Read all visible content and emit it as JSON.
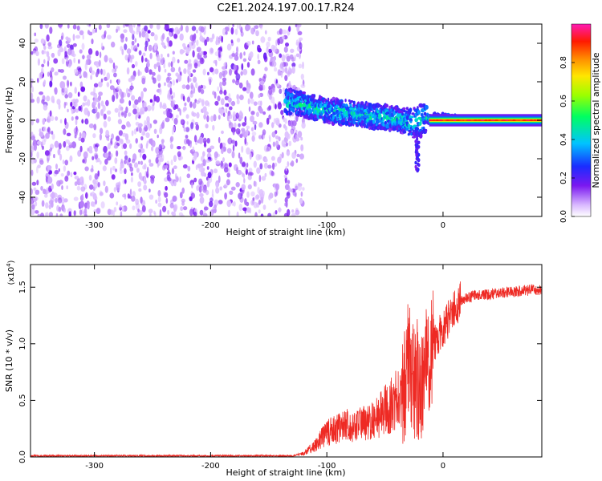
{
  "title": "C2E1.2024.197.00.17.R24",
  "colors": {
    "snr_line": "#ee2a24",
    "background": "#ffffff",
    "noise": "#7a2cf0"
  },
  "chart_data": [
    {
      "type": "heatmap",
      "xlabel": "Height of straight line (km)",
      "ylabel": "Frequency (Hz)",
      "xlim": [
        -355,
        85
      ],
      "ylim": [
        -50,
        50
      ],
      "x_ticks": [
        -300,
        -200,
        -100,
        0
      ],
      "y_ticks": [
        -40,
        -20,
        0,
        20,
        40
      ],
      "x_tick_labels": [
        "-300",
        "-200",
        "-100",
        "0"
      ],
      "y_tick_labels": [
        "-40",
        "-20",
        "0",
        "20",
        "40"
      ],
      "grid": false,
      "colorbar": {
        "label": "Normalized spectral amplitude",
        "range": [
          0,
          1
        ],
        "ticks": [
          0.0,
          0.2,
          0.4,
          0.6,
          0.8
        ],
        "tick_labels": [
          "0.0",
          "0.2",
          "0.4",
          "0.6",
          "0.8"
        ]
      },
      "features": {
        "noise_region_x": [
          -355,
          -125
        ],
        "signal_track": [
          {
            "x": -135,
            "y": 10
          },
          {
            "x": -120,
            "y": 8
          },
          {
            "x": -100,
            "y": 5
          },
          {
            "x": -80,
            "y": 4
          },
          {
            "x": -60,
            "y": 2
          },
          {
            "x": -40,
            "y": 1
          },
          {
            "x": -25,
            "y": -2
          },
          {
            "x": -15,
            "y": 1
          },
          {
            "x": 0,
            "y": 1
          },
          {
            "x": 20,
            "y": 0
          },
          {
            "x": 85,
            "y": 0
          }
        ],
        "steady_tone": {
          "x_start": 10,
          "x_end": 85,
          "y": 0
        }
      }
    },
    {
      "type": "line",
      "xlabel": "Height of straight line (km)",
      "ylabel": "SNR (10 * v/v)",
      "y_multiplier": "(x10",
      "y_multiplier_exp": "4",
      "y_multiplier_end": ")",
      "xlim": [
        -355,
        85
      ],
      "ylim": [
        0,
        1.7
      ],
      "x_ticks": [
        -300,
        -200,
        -100,
        0
      ],
      "y_ticks": [
        0.0,
        0.5,
        1.0,
        1.5
      ],
      "x_tick_labels": [
        "-300",
        "-200",
        "-100",
        "0"
      ],
      "y_tick_labels": [
        "0.0",
        "0.5",
        "1.0",
        "1.5"
      ],
      "grid": false,
      "series": [
        {
          "x": [
            -355,
            -300,
            -250,
            -200,
            -150,
            -130,
            -120,
            -110,
            -100,
            -90,
            -80,
            -70,
            -60,
            -50,
            -40,
            -35,
            -30,
            -25,
            -20,
            -15,
            -10,
            -5,
            0,
            5,
            10,
            15,
            20,
            25,
            30,
            40,
            50,
            60,
            70,
            80,
            85
          ],
          "y": [
            0.01,
            0.01,
            0.01,
            0.01,
            0.01,
            0.01,
            0.03,
            0.1,
            0.22,
            0.26,
            0.28,
            0.3,
            0.32,
            0.42,
            0.5,
            0.6,
            0.85,
            0.7,
            0.65,
            0.85,
            0.95,
            1.05,
            1.12,
            1.22,
            1.32,
            1.38,
            1.4,
            1.42,
            1.43,
            1.44,
            1.45,
            1.46,
            1.47,
            1.48,
            1.48
          ]
        }
      ]
    }
  ]
}
